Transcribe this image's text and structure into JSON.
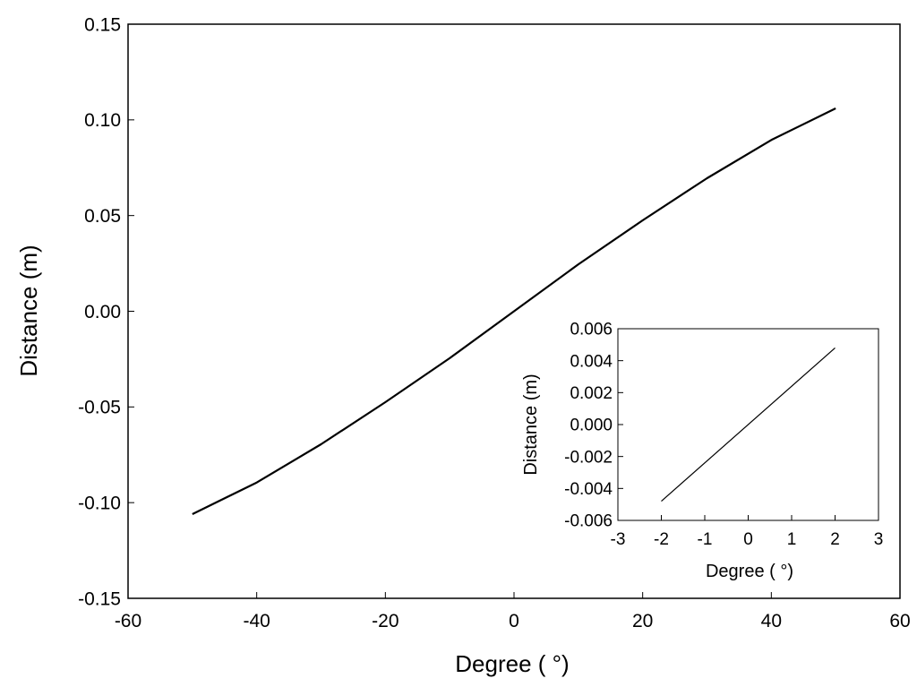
{
  "chart_data": [
    {
      "type": "line",
      "xlabel": "Degree ( °)",
      "ylabel": "Distance (m)",
      "xlim": [
        -60,
        60
      ],
      "ylim": [
        -0.15,
        0.15
      ],
      "xticks": [
        "-60",
        "-40",
        "-20",
        "0",
        "20",
        "40",
        "60"
      ],
      "yticks": [
        "-0.15",
        "-0.10",
        "-0.05",
        "0.00",
        "0.05",
        "0.10",
        "0.15"
      ],
      "grid": false,
      "series": [
        {
          "x": [
            -50,
            -40,
            -30,
            -20,
            -10,
            0,
            10,
            20,
            30,
            40,
            50
          ],
          "y": [
            -0.106,
            -0.0895,
            -0.0695,
            -0.0475,
            -0.0245,
            0.0,
            0.0245,
            0.0475,
            0.0695,
            0.0895,
            0.106
          ]
        }
      ]
    },
    {
      "type": "line",
      "xlabel": "Degree ( °)",
      "ylabel": "Distance (m)",
      "xlim": [
        -3,
        3
      ],
      "ylim": [
        -0.006,
        0.006
      ],
      "xticks": [
        "-3",
        "-2",
        "-1",
        "0",
        "1",
        "2",
        "3"
      ],
      "yticks": [
        "-0.006",
        "-0.004",
        "-0.002",
        "0.000",
        "0.002",
        "0.004",
        "0.006"
      ],
      "grid": false,
      "series": [
        {
          "x": [
            -2,
            2
          ],
          "y": [
            -0.0048,
            0.0048
          ]
        }
      ]
    }
  ]
}
